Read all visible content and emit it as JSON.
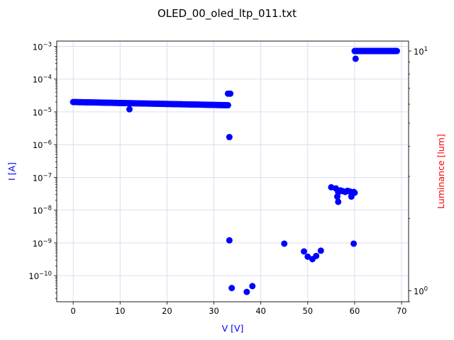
{
  "chart_data": {
    "type": "scatter",
    "title": "OLED_00_oled_ltp_011.txt",
    "xlabel": "V [V]",
    "ylabel": "I [A]",
    "y2label": "Luminance [lum]",
    "xlim": [
      -3.5,
      71.5
    ],
    "ylim": [
      1.6e-11,
      0.00145
    ],
    "y_scale": "log",
    "y2lim": [
      0.9,
      11
    ],
    "y2_scale": "log",
    "x_ticks": [
      0,
      10,
      20,
      30,
      40,
      50,
      60,
      70
    ],
    "x_tick_labels": [
      "0",
      "10",
      "20",
      "30",
      "40",
      "50",
      "60",
      "70"
    ],
    "y_ticks": [
      1e-10,
      1e-09,
      1e-08,
      1e-07,
      1e-06,
      1e-05,
      0.0001,
      0.001
    ],
    "y_tick_labels": [
      "10^-10",
      "10^-9",
      "10^-8",
      "10^-7",
      "10^-6",
      "10^-5",
      "10^-4",
      "10^-3"
    ],
    "y2_ticks": [
      1,
      10
    ],
    "y2_tick_labels": [
      "10^0",
      "10^1"
    ],
    "grid": true,
    "colors": {
      "series": "#0000ff",
      "xlabel": "#0000ff",
      "ylabel": "#0000ff",
      "y2label": "#ff0000",
      "grid": "#d8d8f0"
    },
    "series": [
      {
        "axis": "left",
        "segments": [
          {
            "x_start": 0,
            "x_end": 33,
            "y_start": 2e-05,
            "y_end": 1.6e-05,
            "count": 140
          }
        ],
        "points": [
          [
            12,
            1.2e-05
          ],
          [
            33,
            3.6e-05
          ],
          [
            33.5,
            3.6e-05
          ],
          [
            33.3,
            1.7e-06
          ],
          [
            33.3,
            1.2e-09
          ],
          [
            33.8,
            4.2e-11
          ],
          [
            37,
            3.2e-11
          ],
          [
            38.2,
            4.8e-11
          ],
          [
            45,
            9.5e-10
          ],
          [
            49.2,
            5.5e-10
          ],
          [
            50,
            3.8e-10
          ],
          [
            51,
            3.2e-10
          ],
          [
            51.8,
            4e-10
          ],
          [
            52.8,
            5.8e-10
          ],
          [
            55,
            5e-08
          ],
          [
            56,
            4.6e-08
          ],
          [
            56.5,
            3.5e-08
          ],
          [
            56.3,
            2.6e-08
          ],
          [
            56.5,
            1.8e-08
          ],
          [
            57,
            4e-08
          ],
          [
            57.5,
            3.8e-08
          ],
          [
            58,
            3.6e-08
          ],
          [
            58.5,
            3.9e-08
          ],
          [
            59,
            3.7e-08
          ],
          [
            59.3,
            2.6e-08
          ],
          [
            59.5,
            3.2e-08
          ],
          [
            59.8,
            3.6e-08
          ],
          [
            60,
            3.4e-08
          ],
          [
            59.8,
            9.5e-10
          ],
          [
            60.2,
            0.00042
          ]
        ]
      },
      {
        "axis": "right",
        "segments": [
          {
            "x_start": 60,
            "x_end": 69,
            "y_start": 10,
            "y_end": 10,
            "count": 55
          }
        ]
      }
    ]
  }
}
